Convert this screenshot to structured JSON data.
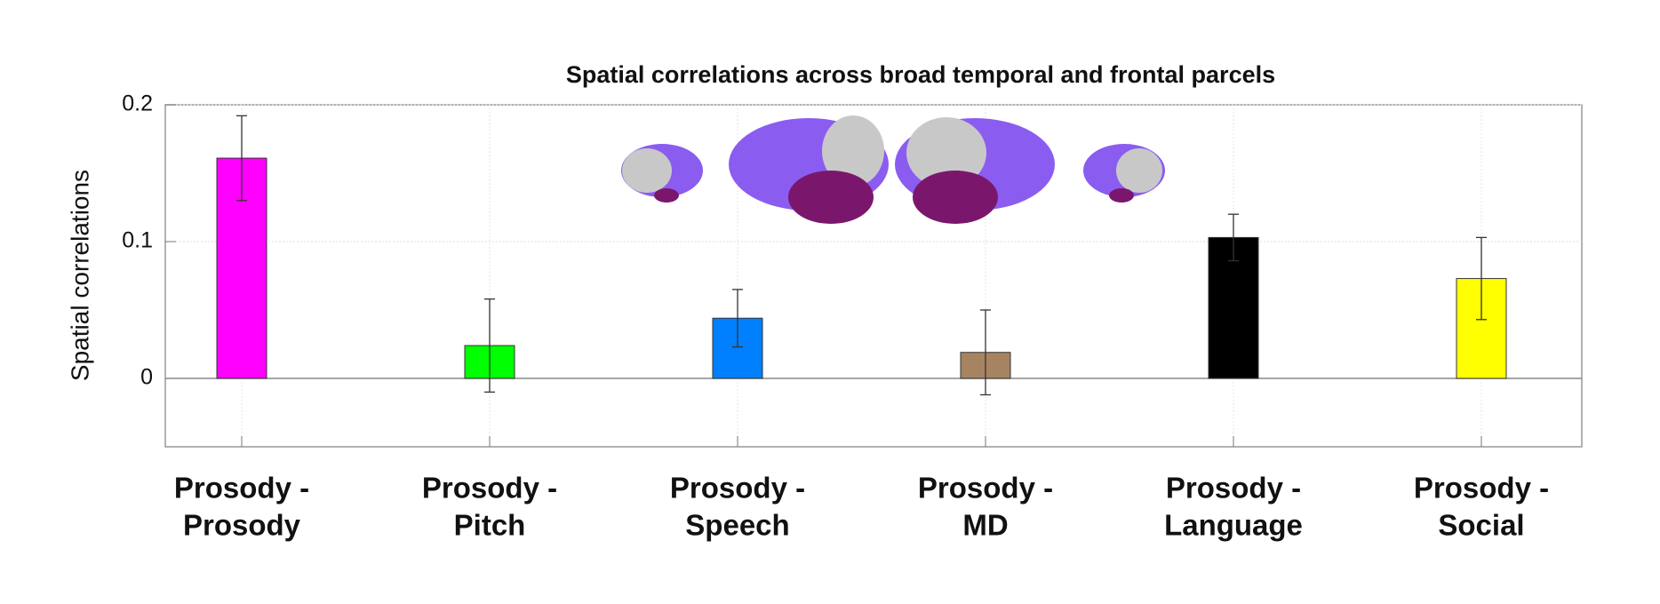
{
  "chart_data": {
    "type": "bar",
    "title": "Spatial correlations across broad temporal and frontal parcels",
    "y_label": "Spatial correlations",
    "categories": [
      [
        "Prosody -",
        "Prosody"
      ],
      [
        "Prosody -",
        "Pitch"
      ],
      [
        "Prosody -",
        "Speech"
      ],
      [
        "Prosody -",
        "MD"
      ],
      [
        "Prosody -",
        "Language"
      ],
      [
        "Prosody -",
        "Social"
      ]
    ],
    "values": [
      0.161,
      0.024,
      0.044,
      0.019,
      0.103,
      0.073
    ],
    "errors": [
      0.031,
      0.034,
      0.021,
      0.031,
      0.017,
      0.03
    ],
    "colors": [
      "#ff00ff",
      "#00ff00",
      "#0080ff",
      "#a68462",
      "#000000",
      "#ffff00"
    ],
    "ylim": [
      -0.05,
      0.2
    ],
    "yticks": [
      0,
      0.1,
      0.2
    ],
    "grid": true
  }
}
